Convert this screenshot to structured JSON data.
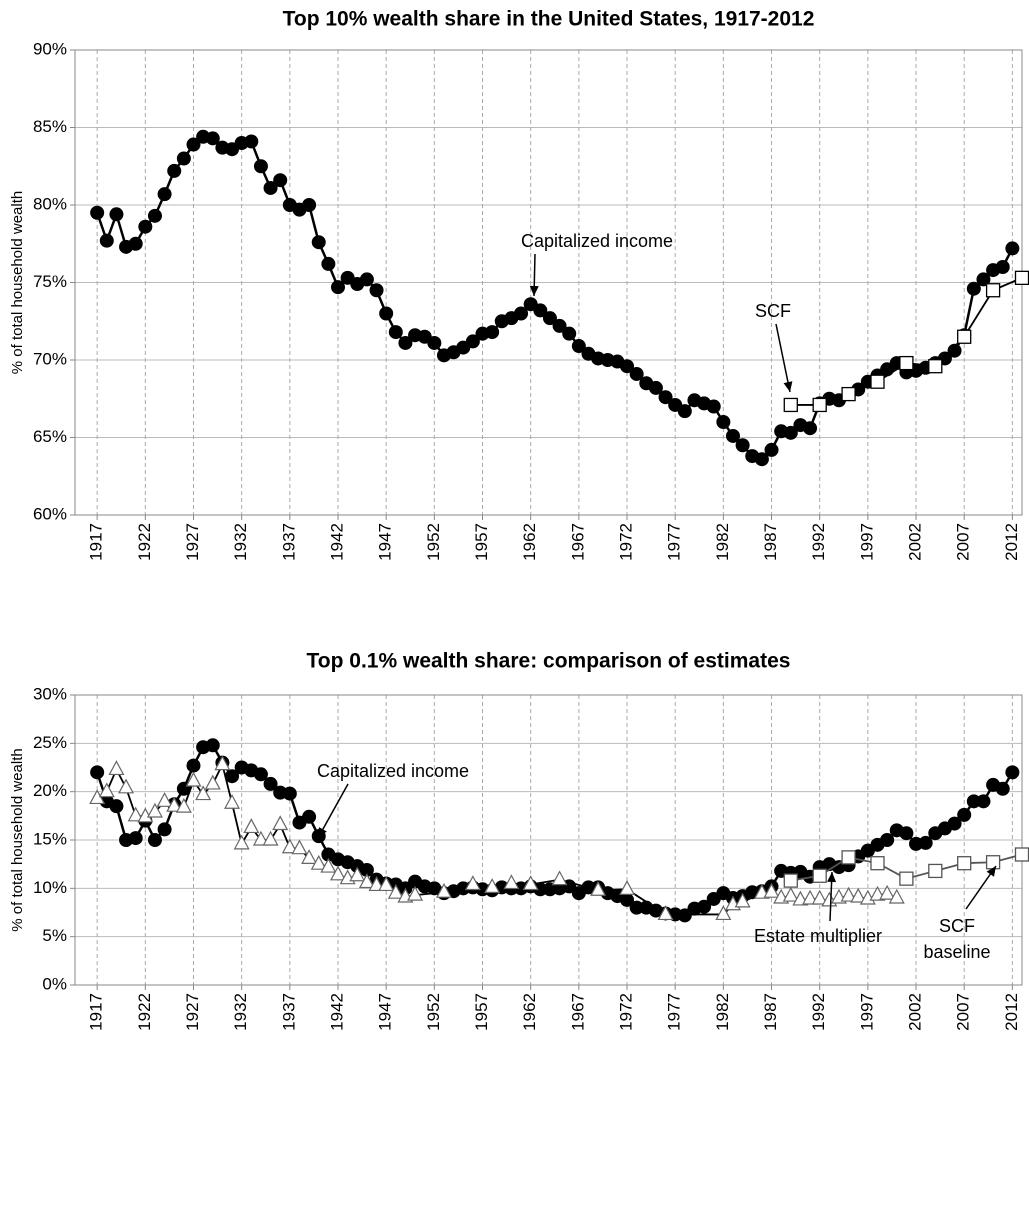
{
  "chart_data": [
    {
      "type": "line",
      "title": "Top 10% wealth share in the United States, 1917-2012",
      "ylabel": "% of total household wealth",
      "xlim": [
        1914.7,
        2013
      ],
      "ylim": [
        60,
        90
      ],
      "xticks": [
        1917,
        1922,
        1927,
        1932,
        1937,
        1942,
        1947,
        1952,
        1957,
        1962,
        1967,
        1972,
        1977,
        1982,
        1987,
        1992,
        1997,
        2002,
        2007,
        2012
      ],
      "yticks": [
        {
          "value": 60,
          "label": "60%"
        },
        {
          "value": 65,
          "label": "65%"
        },
        {
          "value": 70,
          "label": "70%"
        },
        {
          "value": 75,
          "label": "75%"
        },
        {
          "value": 80,
          "label": "80%"
        },
        {
          "value": 85,
          "label": "85%"
        },
        {
          "value": 90,
          "label": "90%"
        }
      ],
      "grid": true,
      "series": [
        {
          "marker": "circle",
          "color": "#000000",
          "x": [
            1917,
            1918,
            1919,
            1920,
            1921,
            1922,
            1923,
            1924,
            1925,
            1926,
            1927,
            1928,
            1929,
            1930,
            1931,
            1932,
            1933,
            1934,
            1935,
            1936,
            1937,
            1938,
            1939,
            1940,
            1941,
            1942,
            1943,
            1944,
            1945,
            1946,
            1947,
            1948,
            1949,
            1950,
            1951,
            1952,
            1953,
            1954,
            1955,
            1956,
            1957,
            1958,
            1959,
            1960,
            1961,
            1962,
            1963,
            1964,
            1965,
            1966,
            1967,
            1968,
            1969,
            1970,
            1971,
            1972,
            1973,
            1974,
            1975,
            1976,
            1977,
            1978,
            1979,
            1980,
            1981,
            1982,
            1983,
            1984,
            1985,
            1986,
            1987,
            1988,
            1989,
            1990,
            1991,
            1992,
            1993,
            1994,
            1995,
            1996,
            1997,
            1998,
            1999,
            2000,
            2001,
            2002,
            2003,
            2004,
            2005,
            2006,
            2007,
            2008,
            2009,
            2010,
            2011,
            2012
          ],
          "values": [
            79.5,
            77.7,
            79.4,
            77.3,
            77.5,
            78.6,
            79.3,
            80.7,
            82.2,
            83.0,
            83.9,
            84.4,
            84.3,
            83.7,
            83.6,
            84.0,
            84.1,
            82.5,
            81.1,
            81.6,
            80.0,
            79.7,
            80.0,
            77.6,
            76.2,
            74.7,
            75.3,
            74.9,
            75.2,
            74.5,
            73.0,
            71.8,
            71.1,
            71.6,
            71.5,
            71.1,
            70.3,
            70.5,
            70.8,
            71.2,
            71.7,
            71.8,
            72.5,
            72.7,
            73.0,
            73.6,
            73.2,
            72.7,
            72.2,
            71.7,
            70.9,
            70.4,
            70.1,
            70.0,
            69.9,
            69.6,
            69.1,
            68.5,
            68.2,
            67.6,
            67.1,
            66.7,
            67.4,
            67.2,
            67.0,
            66.0,
            65.1,
            64.5,
            63.8,
            63.6,
            64.2,
            65.4,
            65.3,
            65.8,
            65.6,
            67.2,
            67.5,
            67.4,
            67.8,
            68.1,
            68.6,
            69.0,
            69.4,
            69.8,
            69.2,
            69.3,
            69.5,
            69.8,
            70.1,
            70.6,
            71.6,
            74.6,
            75.2,
            75.8,
            76.0,
            77.2
          ]
        },
        {
          "marker": "square",
          "color": "#000000",
          "x": [
            1989,
            1992,
            1995,
            1998,
            2001,
            2004,
            2007,
            2010,
            2013
          ],
          "values": [
            67.1,
            67.1,
            67.8,
            68.6,
            69.8,
            69.6,
            71.5,
            74.5,
            75.3
          ]
        }
      ],
      "annotations": [
        {
          "text": [
            "Capitalized income"
          ]
        },
        {
          "text": [
            "SCF"
          ]
        }
      ]
    },
    {
      "type": "line",
      "title": "Top 0.1% wealth share: comparison of estimates",
      "ylabel": "% of total household wealth",
      "xlim": [
        1914.7,
        2013
      ],
      "ylim": [
        0,
        30
      ],
      "xticks": [
        1917,
        1922,
        1927,
        1932,
        1937,
        1942,
        1947,
        1952,
        1957,
        1962,
        1967,
        1972,
        1977,
        1982,
        1987,
        1992,
        1997,
        2002,
        2007,
        2012
      ],
      "yticks": [
        {
          "value": 0,
          "label": "0%"
        },
        {
          "value": 5,
          "label": "5%"
        },
        {
          "value": 10,
          "label": "10%"
        },
        {
          "value": 15,
          "label": "15%"
        },
        {
          "value": 20,
          "label": "20%"
        },
        {
          "value": 25,
          "label": "25%"
        },
        {
          "value": 30,
          "label": "30%"
        }
      ],
      "grid": true,
      "series": [
        {
          "marker": "circle",
          "color": "#000000",
          "x": [
            1917,
            1918,
            1919,
            1920,
            1921,
            1922,
            1923,
            1924,
            1925,
            1926,
            1927,
            1928,
            1929,
            1930,
            1931,
            1932,
            1933,
            1934,
            1935,
            1936,
            1937,
            1938,
            1939,
            1940,
            1941,
            1942,
            1943,
            1944,
            1945,
            1946,
            1947,
            1948,
            1949,
            1950,
            1951,
            1952,
            1953,
            1954,
            1955,
            1956,
            1957,
            1958,
            1959,
            1960,
            1961,
            1962,
            1963,
            1964,
            1965,
            1966,
            1967,
            1968,
            1969,
            1970,
            1971,
            1972,
            1973,
            1974,
            1975,
            1976,
            1977,
            1978,
            1979,
            1980,
            1981,
            1982,
            1983,
            1984,
            1985,
            1986,
            1987,
            1988,
            1989,
            1990,
            1991,
            1992,
            1993,
            1994,
            1995,
            1996,
            1997,
            1998,
            1999,
            2000,
            2001,
            2002,
            2003,
            2004,
            2005,
            2006,
            2007,
            2008,
            2009,
            2010,
            2011,
            2012
          ],
          "values": [
            22.0,
            19.0,
            18.5,
            15.0,
            15.2,
            17.0,
            15.0,
            16.1,
            18.7,
            20.3,
            22.7,
            24.6,
            24.8,
            23.0,
            21.6,
            22.5,
            22.2,
            21.8,
            20.8,
            19.9,
            19.8,
            16.8,
            17.4,
            15.4,
            13.5,
            13.0,
            12.7,
            12.3,
            11.9,
            10.9,
            10.5,
            10.4,
            10.0,
            10.7,
            10.2,
            10.0,
            9.5,
            9.7,
            10.0,
            10.1,
            9.9,
            9.8,
            10.1,
            10.0,
            10.0,
            10.2,
            9.9,
            9.9,
            10.0,
            10.2,
            9.5,
            10.1,
            10.1,
            9.5,
            9.2,
            8.8,
            8.0,
            8.0,
            7.7,
            7.4,
            7.3,
            7.2,
            7.9,
            8.1,
            8.9,
            9.5,
            9.0,
            9.2,
            9.6,
            9.7,
            10.2,
            11.8,
            11.6,
            11.7,
            11.2,
            12.2,
            12.5,
            12.2,
            12.4,
            13.3,
            13.9,
            14.5,
            15.0,
            16.0,
            15.7,
            14.6,
            14.7,
            15.7,
            16.2,
            16.7,
            17.6,
            19.0,
            19.0,
            20.7,
            20.3,
            22.0
          ]
        },
        {
          "marker": "triangle",
          "color": "#000000",
          "x": [
            1917,
            1918,
            1919,
            1920,
            1921,
            1922,
            1923,
            1924,
            1925,
            1926,
            1927,
            1928,
            1929,
            1930,
            1931,
            1932,
            1933,
            1934,
            1935,
            1936,
            1937,
            1938,
            1939,
            1940,
            1941,
            1942,
            1943,
            1944,
            1945,
            1946,
            1947,
            1948,
            1949,
            1950,
            1953,
            1956,
            1958,
            1960,
            1962,
            1965,
            1969,
            1972,
            1976,
            1982,
            1983,
            1984,
            1986,
            1987,
            1988,
            1989,
            1990,
            1991,
            1992,
            1993,
            1994,
            1995,
            1996,
            1997,
            1998,
            1999,
            2000
          ],
          "values": [
            19.3,
            20.0,
            22.3,
            20.4,
            17.5,
            17.4,
            17.9,
            19.0,
            18.5,
            18.4,
            21.1,
            19.7,
            20.8,
            22.8,
            18.8,
            14.6,
            16.3,
            15.0,
            15.0,
            16.6,
            14.2,
            14.1,
            13.1,
            12.5,
            12.2,
            11.4,
            11.0,
            11.3,
            10.6,
            10.3,
            10.3,
            9.5,
            9.1,
            9.3,
            9.6,
            10.4,
            10.1,
            10.5,
            10.4,
            10.9,
            9.8,
            9.9,
            7.3,
            7.3,
            8.3,
            8.6,
            9.5,
            9.6,
            9.0,
            9.2,
            8.8,
            8.9,
            8.9,
            8.7,
            9.0,
            9.2,
            9.1,
            8.9,
            9.3,
            9.4,
            9.0
          ]
        },
        {
          "marker": "square",
          "color": "#555555",
          "x": [
            1989,
            1992,
            1995,
            1998,
            2001,
            2004,
            2007,
            2010,
            2013
          ],
          "values": [
            10.8,
            11.3,
            13.2,
            12.6,
            11.0,
            11.8,
            12.6,
            12.7,
            13.5
          ]
        }
      ],
      "annotations": [
        {
          "text": [
            "Capitalized income"
          ]
        },
        {
          "text": [
            "Estate multiplier"
          ]
        },
        {
          "text": [
            "SCF",
            "baseline"
          ]
        }
      ]
    }
  ]
}
